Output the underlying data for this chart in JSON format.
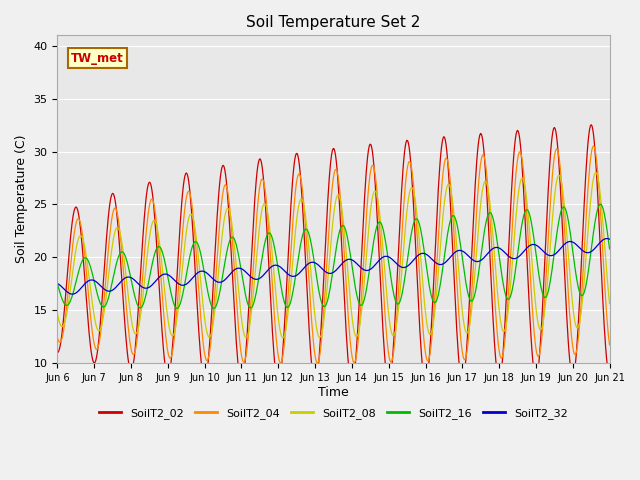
{
  "title": "Soil Temperature Set 2",
  "xlabel": "Time",
  "ylabel": "Soil Temperature (C)",
  "ylim": [
    10,
    41
  ],
  "yticks": [
    10,
    15,
    20,
    25,
    30,
    35,
    40
  ],
  "annotation_text": "TW_met",
  "annotation_box_facecolor": "#ffffc8",
  "annotation_box_edgecolor": "#aa6600",
  "annotation_text_color": "#cc0000",
  "fig_facecolor": "#f0f0f0",
  "axes_facecolor": "#e8e8e8",
  "legend_labels": [
    "SoilT2_02",
    "SoilT2_04",
    "SoilT2_08",
    "SoilT2_16",
    "SoilT2_32"
  ],
  "line_colors": [
    "#cc0000",
    "#ff8800",
    "#cccc00",
    "#00bb00",
    "#0000cc"
  ],
  "xtick_labels": [
    "Jun 6",
    "Jun 7",
    "Jun 8",
    "Jun 9",
    "Jun 10",
    "Jun 11",
    "Jun 12",
    "Jun 13",
    "Jun 14",
    "Jun 15",
    "Jun 16",
    "Jun 17",
    "Jun 18",
    "Jun 19",
    "Jun 20",
    "Jun 21"
  ],
  "num_days": 15,
  "points_per_day": 48
}
